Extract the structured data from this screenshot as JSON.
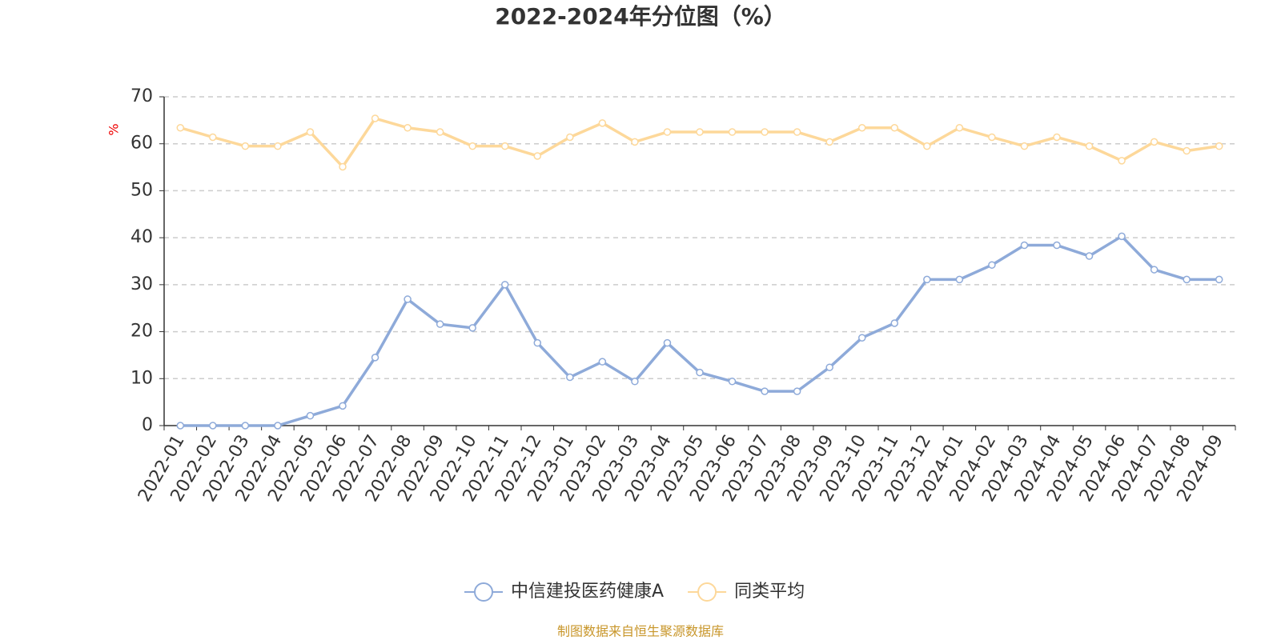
{
  "chart_data": {
    "type": "line",
    "title": "2022-2024年分位图（%）",
    "y_label": "%",
    "source": "制图数据来自恒生聚源数据库",
    "categories": [
      "2022-01",
      "2022-02",
      "2022-03",
      "2022-04",
      "2022-05",
      "2022-06",
      "2022-07",
      "2022-08",
      "2022-09",
      "2022-10",
      "2022-11",
      "2022-12",
      "2023-01",
      "2023-02",
      "2023-03",
      "2023-04",
      "2023-05",
      "2023-06",
      "2023-07",
      "2023-08",
      "2023-09",
      "2023-10",
      "2023-11",
      "2023-12",
      "2024-01",
      "2024-02",
      "2024-03",
      "2024-04",
      "2024-05",
      "2024-06",
      "2024-07",
      "2024-08",
      "2024-09"
    ],
    "series": [
      {
        "name": "中信建投医药健康A",
        "color": "#8eaad9",
        "values": [
          0,
          0,
          0,
          0,
          2.1,
          4.2,
          14.5,
          26.9,
          21.6,
          20.8,
          30,
          17.6,
          10.3,
          13.6,
          9.4,
          17.6,
          11.3,
          9.4,
          7.3,
          7.3,
          12.4,
          18.7,
          21.8,
          31.1,
          31.1,
          34.2,
          38.4,
          38.4,
          36.1,
          40.3,
          33.2,
          31.1,
          31.1
        ]
      },
      {
        "name": "同类平均",
        "color": "#fdd89a",
        "values": [
          63.4,
          61.4,
          59.5,
          59.5,
          62.5,
          55.1,
          65.4,
          63.4,
          62.5,
          59.5,
          59.5,
          57.4,
          61.4,
          64.4,
          60.4,
          62.5,
          62.5,
          62.5,
          62.5,
          62.5,
          60.4,
          63.4,
          63.4,
          59.5,
          63.4,
          61.4,
          59.5,
          61.4,
          59.5,
          56.4,
          60.4,
          58.5,
          59.5
        ]
      }
    ],
    "ylim": [
      0,
      70
    ],
    "yticks": [
      0,
      10,
      20,
      30,
      40,
      50,
      60,
      70
    ],
    "grid": true,
    "legend": "bottom"
  }
}
